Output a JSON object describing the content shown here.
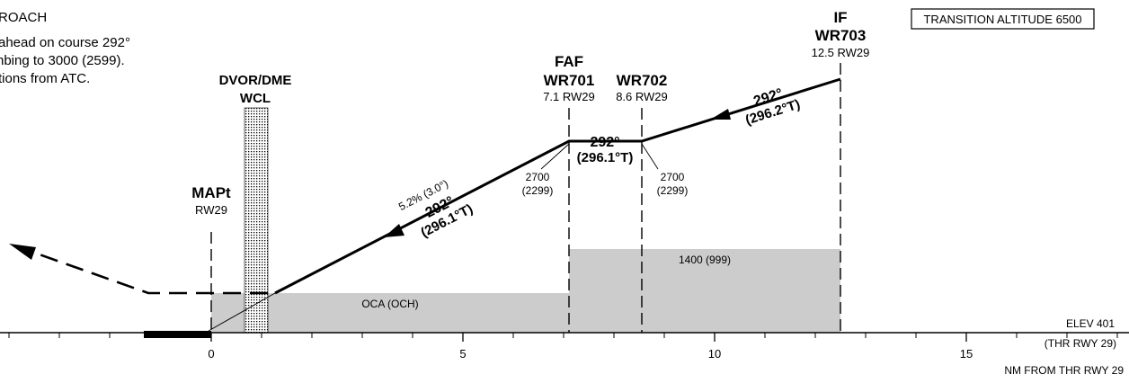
{
  "chart": {
    "procedure_title": "ROACH",
    "instructions": [
      "ahead on course 292°",
      "nbing to 3000 (2599).",
      "tions from ATC."
    ],
    "transition_altitude": "TRANSITION ALTITUDE 6500",
    "elevation": "ELEV 401",
    "threshold_ref": "(THR RWY 29)",
    "axis_label": "NM FROM THR RWY 29",
    "axis_ticks": [
      "0",
      "5",
      "10",
      "15"
    ]
  },
  "fixes": {
    "if": {
      "role": "IF",
      "name": "WR703",
      "distance": "12.5 RW29"
    },
    "faf": {
      "role": "FAF",
      "name": "WR701",
      "distance": "7.1 RW29"
    },
    "wr702": {
      "name": "WR702",
      "distance": "8.6 RW29"
    },
    "mapt": {
      "role": "MAPt",
      "distance": "RW29"
    },
    "dvor": {
      "type": "DVOR/DME",
      "ident": "WCL"
    }
  },
  "segments": {
    "intermediate": {
      "course": "292°",
      "true_course": "(296.2°T)"
    },
    "level": {
      "course": "292°",
      "true_course": "(296.1°T)"
    },
    "final": {
      "gradient": "5.2% (3.0°)",
      "course": "292°",
      "true_course": "(296.1°T)"
    }
  },
  "altitudes": {
    "faf": {
      "alt": "2700",
      "height": "(2299)"
    },
    "wr702": {
      "alt": "2700",
      "height": "(2299)"
    }
  },
  "obstacle_clearance": {
    "final": "OCA (OCH)",
    "intermediate": "1400 (999)"
  },
  "colors": {
    "shade": "#cccccc",
    "line": "#000000"
  }
}
